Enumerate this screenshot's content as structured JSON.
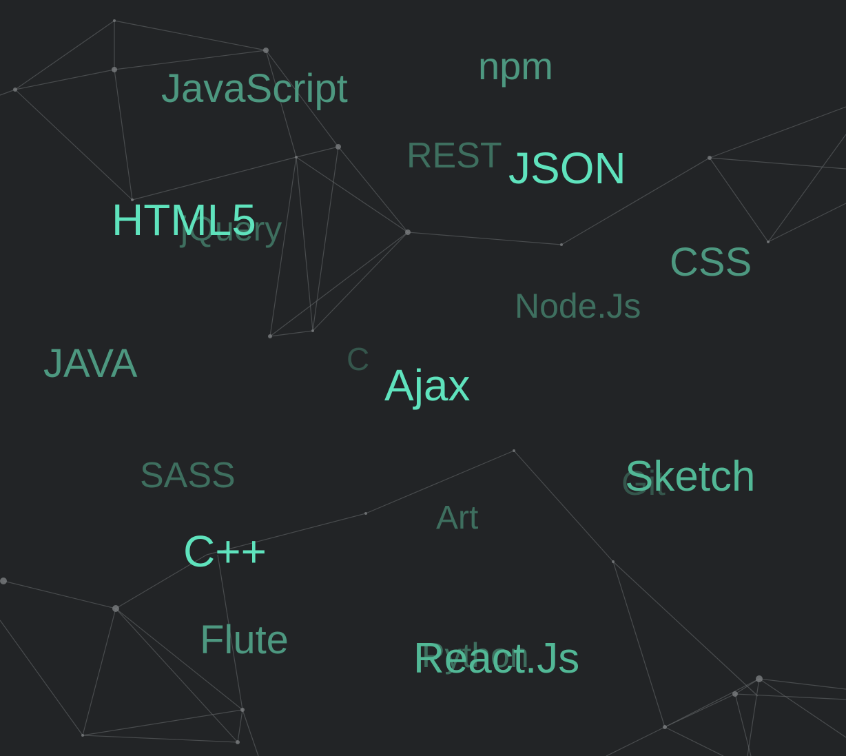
{
  "background_color": "#222426",
  "accent_colors": {
    "bright": "#5fe3bd",
    "mid": "#52b896",
    "soft": "#4d9880",
    "dim": "#3e6f5f",
    "faint": "#35564c",
    "network_lines": "#6a6d70"
  },
  "tag_cloud": {
    "words": {
      "javascript": "JavaScript",
      "npm": "npm",
      "rest": "REST",
      "json": "JSON",
      "html5": "HTML5",
      "jquery": "jQuery",
      "css": "CSS",
      "nodejs": "Node.Js",
      "java": "JAVA",
      "c": "C",
      "ajax": "Ajax",
      "sass": "SASS",
      "sketch": "Sketch",
      "git": "Git",
      "art": "Art",
      "cpp": "C++",
      "flute": "Flute",
      "python": "Python",
      "reactjs": "React.Js"
    }
  }
}
